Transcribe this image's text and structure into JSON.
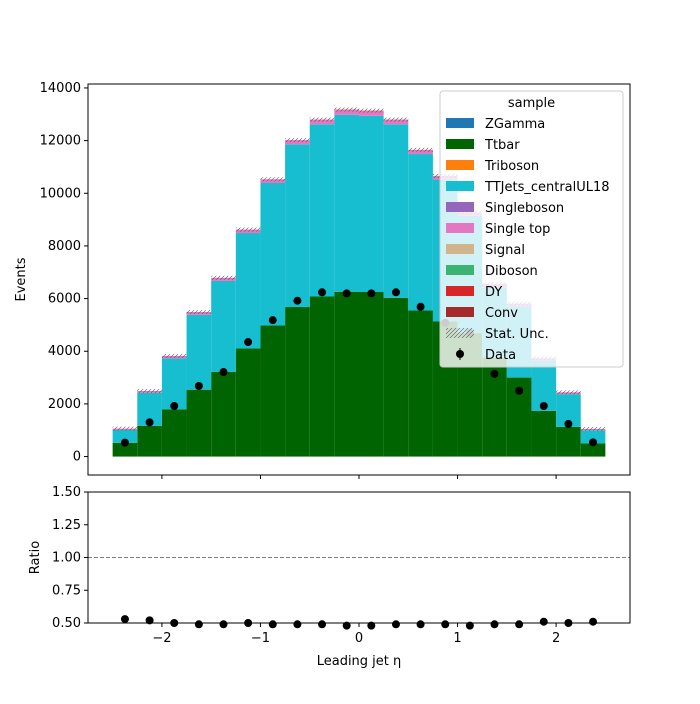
{
  "chart_data": {
    "type": "bar",
    "subtype": "stacked-histogram-with-ratio",
    "x": [
      -2.375,
      -2.125,
      -1.875,
      -1.625,
      -1.375,
      -1.125,
      -0.875,
      -0.625,
      -0.375,
      -0.125,
      0.125,
      0.375,
      0.625,
      0.875,
      1.125,
      1.375,
      1.625,
      1.875,
      2.125,
      2.375
    ],
    "bin_edges": [
      -2.5,
      -2.25,
      -2.0,
      -1.75,
      -1.5,
      -1.25,
      -1.0,
      -0.75,
      -0.5,
      -0.25,
      0.0,
      0.25,
      0.5,
      0.75,
      1.0,
      1.25,
      1.5,
      1.75,
      2.0,
      2.25,
      2.5
    ],
    "series": [
      {
        "name": "ZGamma",
        "color": "#1f77b4",
        "values": [
          0,
          0,
          0,
          0,
          0,
          0,
          0,
          0,
          0,
          0,
          0,
          0,
          0,
          0,
          0,
          0,
          0,
          0,
          0,
          0
        ]
      },
      {
        "name": "Ttbar",
        "color": "#006400",
        "values": [
          520,
          1170,
          1790,
          2540,
          3220,
          4110,
          4980,
          5680,
          6080,
          6260,
          6250,
          6030,
          5550,
          5130,
          4690,
          3760,
          3000,
          1740,
          1130,
          500
        ]
      },
      {
        "name": "Triboson",
        "color": "#ff7f0e",
        "values": [
          0,
          0,
          0,
          0,
          0,
          0,
          0,
          0,
          0,
          0,
          0,
          0,
          0,
          0,
          0,
          0,
          0,
          0,
          0,
          0
        ]
      },
      {
        "name": "TTJets_centralUL18",
        "color": "#17becf",
        "values": [
          490,
          1250,
          1940,
          2840,
          3450,
          4380,
          5410,
          6180,
          6540,
          6720,
          6690,
          6590,
          5940,
          5390,
          4450,
          2670,
          2710,
          1900,
          1240,
          500
        ]
      },
      {
        "name": "Singleboson",
        "color": "#9467bd",
        "values": [
          0,
          0,
          0,
          0,
          0,
          0,
          0,
          0,
          0,
          0,
          0,
          0,
          0,
          0,
          0,
          0,
          0,
          0,
          0,
          0
        ]
      },
      {
        "name": "Single top",
        "color": "#e377c2",
        "values": [
          50,
          70,
          90,
          110,
          120,
          130,
          140,
          160,
          180,
          190,
          190,
          180,
          160,
          140,
          130,
          120,
          100,
          90,
          70,
          50
        ]
      },
      {
        "name": "Signal",
        "color": "#d2b48c",
        "values": [
          0,
          0,
          0,
          0,
          0,
          0,
          0,
          0,
          0,
          0,
          0,
          0,
          0,
          0,
          0,
          0,
          0,
          0,
          0,
          0
        ]
      },
      {
        "name": "Diboson",
        "color": "#3cb371",
        "values": [
          0,
          0,
          0,
          0,
          0,
          0,
          0,
          0,
          0,
          0,
          0,
          0,
          0,
          0,
          0,
          0,
          0,
          0,
          0,
          0
        ]
      },
      {
        "name": "DY",
        "color": "#d62728",
        "values": [
          0,
          0,
          0,
          0,
          0,
          0,
          0,
          0,
          0,
          10,
          10,
          0,
          0,
          0,
          0,
          0,
          0,
          0,
          0,
          0
        ]
      },
      {
        "name": "Conv",
        "color": "#a52a2a",
        "values": [
          0,
          0,
          0,
          0,
          0,
          0,
          0,
          0,
          0,
          0,
          0,
          0,
          0,
          0,
          0,
          0,
          0,
          0,
          0,
          0
        ]
      }
    ],
    "data": {
      "name": "Data",
      "values": [
        530,
        1300,
        1920,
        2680,
        3210,
        4350,
        5180,
        5920,
        6240,
        6200,
        6200,
        6240,
        5690,
        5080,
        4690,
        3140,
        2500,
        1920,
        1240,
        540
      ]
    },
    "ratio": {
      "ylabel": "Ratio",
      "ylim": [
        0.5,
        1.5
      ],
      "yticks": [
        "0.50",
        "0.75",
        "1.00",
        "1.25",
        "1.50"
      ],
      "reference_line": 1.0,
      "values": [
        0.53,
        0.52,
        0.5,
        0.49,
        0.49,
        0.5,
        0.49,
        0.49,
        0.49,
        0.48,
        0.48,
        0.49,
        0.49,
        0.49,
        0.48,
        0.49,
        0.49,
        0.51,
        0.5,
        0.51
      ]
    },
    "ylabel": "Events",
    "xlabel": "Leading jet  η",
    "ylim": [
      -700,
      14150
    ],
    "xlim": [
      -2.75,
      2.75
    ],
    "yticks": [
      "0",
      "2000",
      "4000",
      "6000",
      "8000",
      "10000",
      "12000",
      "14000"
    ],
    "xticks": [
      "−2",
      "−1",
      "0",
      "1",
      "2"
    ],
    "legend": {
      "title": "sample",
      "placement": "top-right",
      "entries": [
        "ZGamma",
        "Ttbar",
        "Triboson",
        "TTJets_centralUL18",
        "Singleboson",
        "Single top",
        "Signal",
        "Diboson",
        "DY",
        "Conv",
        "Stat. Unc.",
        "Data"
      ]
    },
    "grid": false
  }
}
